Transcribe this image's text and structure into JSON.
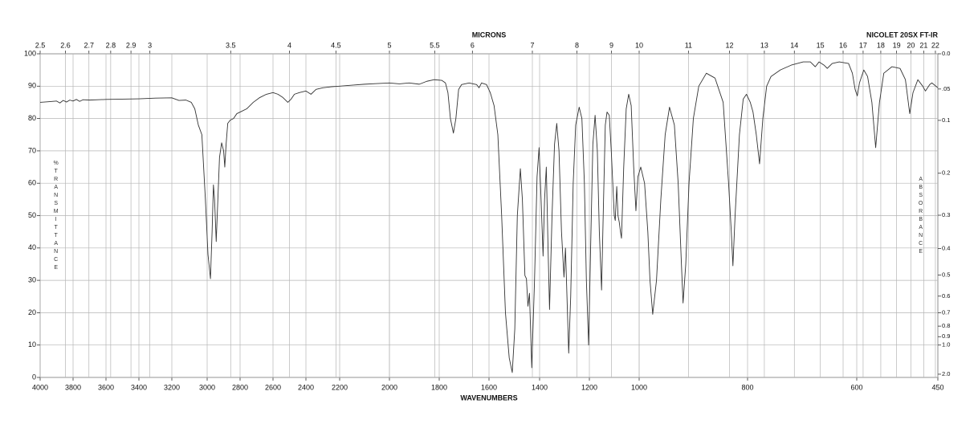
{
  "chart_data": {
    "type": "line",
    "title": "NICOLET 20SX FT-IR",
    "x_label": "WAVENUMBERS",
    "x2_label": "MICRONS",
    "y_label": "%TRANSMITTANCE",
    "y2_label": "ABSORBANCE",
    "color": "#333333",
    "grid": true,
    "xlim": [
      4000,
      450
    ],
    "xticks": [
      4000,
      3800,
      3600,
      3400,
      3200,
      3000,
      2800,
      2600,
      2400,
      2200,
      2000,
      1800,
      1600,
      1400,
      1200,
      1000,
      800,
      600,
      450
    ],
    "x2ticks": [
      2.5,
      2.6,
      2.7,
      2.8,
      2.9,
      3,
      3.5,
      4,
      4.5,
      5,
      5.5,
      6,
      7,
      8,
      9,
      10,
      11,
      12,
      13,
      14,
      15,
      16,
      17,
      18,
      19,
      20,
      21,
      22
    ],
    "ylim": [
      0,
      100
    ],
    "yticks": [
      0,
      10,
      20,
      30,
      40,
      50,
      60,
      70,
      80,
      90,
      100
    ],
    "y2_scale": "absorbance",
    "y2ticks": [
      {
        "value": 0,
        "label": "0.0"
      },
      {
        "value": 0.05,
        "label": ".05"
      },
      0.1,
      0.2,
      0.3,
      0.4,
      0.5,
      0.6,
      0.7,
      0.8,
      0.9,
      {
        "value": 1,
        "label": "1.0"
      },
      {
        "value": 2,
        "label": "2.0"
      }
    ],
    "x": [
      4000,
      3950,
      3900,
      3880,
      3860,
      3840,
      3820,
      3800,
      3780,
      3760,
      3740,
      3700,
      3650,
      3600,
      3500,
      3400,
      3300,
      3200,
      3160,
      3120,
      3090,
      3070,
      3050,
      3030,
      3010,
      2995,
      2980,
      2970,
      2962,
      2955,
      2945,
      2935,
      2925,
      2912,
      2900,
      2893,
      2885,
      2875,
      2860,
      2840,
      2820,
      2800,
      2760,
      2720,
      2680,
      2640,
      2600,
      2570,
      2540,
      2510,
      2490,
      2470,
      2440,
      2400,
      2370,
      2340,
      2300,
      2250,
      2200,
      2150,
      2100,
      2050,
      2000,
      1960,
      1920,
      1880,
      1850,
      1820,
      1790,
      1775,
      1765,
      1755,
      1743,
      1733,
      1722,
      1710,
      1680,
      1650,
      1640,
      1630,
      1610,
      1595,
      1580,
      1565,
      1550,
      1535,
      1520,
      1508,
      1498,
      1488,
      1476,
      1468,
      1458,
      1452,
      1446,
      1440,
      1431,
      1420,
      1410,
      1402,
      1394,
      1386,
      1380,
      1373,
      1366,
      1360,
      1350,
      1340,
      1331,
      1322,
      1312,
      1302,
      1296,
      1290,
      1283,
      1275,
      1265,
      1255,
      1241,
      1230,
      1220,
      1212,
      1203,
      1195,
      1186,
      1177,
      1168,
      1160,
      1151,
      1143,
      1136,
      1129,
      1120,
      1112,
      1100,
      1096,
      1090,
      1085,
      1080,
      1075,
      1071,
      1062,
      1052,
      1042,
      1032,
      1022,
      1013,
      1005,
      997,
      990,
      984,
      980,
      975,
      968,
      960,
      952,
      944,
      935,
      928,
      922,
      919,
      914,
      908,
      900,
      890,
      876,
      860,
      845,
      835,
      830,
      827,
      823,
      815,
      808,
      802,
      795,
      790,
      784,
      778,
      772,
      765,
      757,
      740,
      720,
      698,
      685,
      676,
      669,
      660,
      654,
      645,
      632,
      615,
      608,
      603,
      599,
      595,
      587,
      580,
      572,
      565,
      558,
      550,
      535,
      520,
      510,
      502,
      496,
      487,
      478,
      473,
      465,
      461,
      450
    ],
    "values": [
      85,
      85.2,
      85.4,
      84.8,
      85.6,
      85.1,
      85.7,
      85.4,
      85.9,
      85.3,
      85.8,
      85.7,
      85.8,
      85.9,
      86,
      86.1,
      86.3,
      86.4,
      85.6,
      85.7,
      85,
      83,
      78,
      75,
      55,
      38,
      30.5,
      45,
      59.5,
      55,
      42,
      55,
      68,
      72.5,
      70,
      65,
      72,
      78.5,
      79.5,
      80,
      81.5,
      82,
      83,
      85,
      86.5,
      87.5,
      88,
      87.5,
      86.5,
      85,
      86,
      87.5,
      88,
      88.5,
      87.5,
      89,
      89.5,
      89.8,
      90,
      90.3,
      90.6,
      90.8,
      91,
      90.7,
      91,
      90.6,
      91.5,
      92,
      91.8,
      91,
      88,
      80,
      75.5,
      80,
      89,
      90.5,
      91,
      90.5,
      89.5,
      91,
      90.5,
      88,
      84,
      75,
      50,
      20,
      6,
      1.5,
      15,
      50,
      64.5,
      55,
      31.5,
      30.5,
      22,
      26,
      3,
      30,
      62,
      71,
      55,
      37.5,
      55,
      65,
      40,
      21,
      50,
      72,
      78.5,
      70,
      45,
      31,
      40,
      25,
      7.5,
      25,
      60,
      78,
      83.5,
      80,
      60,
      30,
      10,
      40,
      72,
      81,
      70,
      45,
      27,
      55,
      78,
      82,
      81,
      70,
      50,
      48.5,
      59,
      50,
      48,
      45,
      43,
      65,
      83,
      87.5,
      84,
      65,
      51.5,
      62,
      65,
      60,
      45,
      30,
      19.5,
      30,
      55,
      75,
      83.5,
      78,
      60,
      35,
      23,
      35,
      60,
      80,
      90,
      94,
      92.5,
      85,
      60,
      45,
      34.5,
      50,
      75,
      86,
      87.5,
      85,
      82,
      75,
      66,
      80,
      90,
      93,
      95,
      96.5,
      97.5,
      97.5,
      96,
      97.5,
      96.5,
      95.5,
      97,
      97.5,
      97,
      94,
      89,
      87,
      91,
      95,
      93,
      85,
      71,
      85,
      94,
      96,
      95.5,
      92,
      81.5,
      88,
      92,
      90,
      88.5,
      90.5,
      91,
      89.5
    ]
  }
}
